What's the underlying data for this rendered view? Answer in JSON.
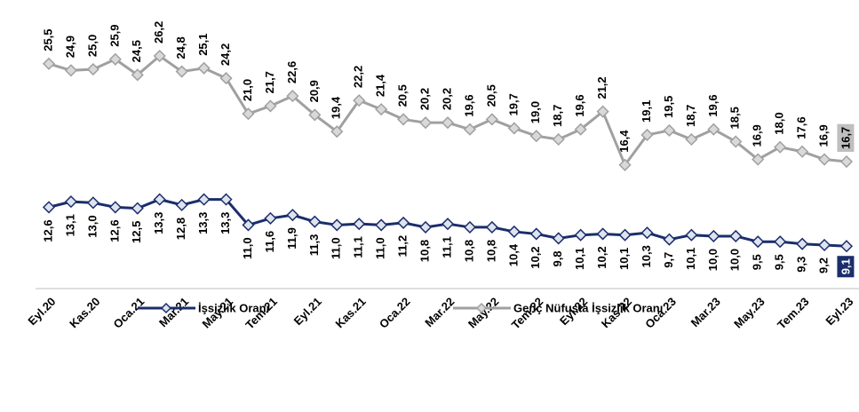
{
  "chart_data": {
    "type": "line",
    "categories": [
      "Eyl.20",
      null,
      "Kas.20",
      null,
      "Oca.21",
      null,
      "Mar.21",
      null,
      "May.21",
      null,
      "Tem.21",
      null,
      "Eyl.21",
      null,
      "Kas.21",
      null,
      "Oca.22",
      null,
      "Mar.22",
      null,
      "May.22",
      null,
      "Tem.22",
      null,
      "Eyl.22",
      null,
      "Kas.22",
      null,
      "Oca.23",
      null,
      "Mar.23",
      null,
      "May.23",
      null,
      "Tem.23",
      null,
      "Eyl.23"
    ],
    "series": [
      {
        "name": "İşsizlik Oranı",
        "color": "#1a2e6b",
        "values": [
          12.6,
          13.1,
          13.0,
          12.6,
          12.5,
          13.3,
          12.8,
          13.3,
          13.3,
          11.0,
          11.6,
          11.9,
          11.3,
          11.0,
          11.1,
          11.0,
          11.2,
          10.8,
          11.1,
          10.8,
          10.8,
          10.4,
          10.2,
          9.8,
          10.1,
          10.2,
          10.1,
          10.3,
          9.7,
          10.1,
          10.0,
          10.0,
          9.5,
          9.5,
          9.3,
          9.2,
          9.1
        ],
        "value_labels": [
          "12,6",
          "13,1",
          "13,0",
          "12,6",
          "12,5",
          "13,3",
          "12,8",
          "13,3",
          "13,3",
          "11,0",
          "11,6",
          "11,9",
          "11,3",
          "11,0",
          "11,1",
          "11,0",
          "11,2",
          "10,8",
          "11,1",
          "10,8",
          "10,8",
          "10,4",
          "10,2",
          "9,8",
          "10,1",
          "10,2",
          "10,1",
          "10,3",
          "9,7",
          "10,1",
          "10,0",
          "10,0",
          "9,5",
          "9,5",
          "9,3",
          "9,2",
          "9,1"
        ]
      },
      {
        "name": "Genç Nüfusta İşsizlik Oranı",
        "color": "#a0a0a0",
        "values": [
          25.5,
          24.9,
          25.0,
          25.9,
          24.5,
          26.2,
          24.8,
          25.1,
          24.2,
          21.0,
          21.7,
          22.6,
          20.9,
          19.4,
          22.2,
          21.4,
          20.5,
          20.2,
          20.2,
          19.6,
          20.5,
          19.7,
          19.0,
          18.7,
          19.6,
          21.2,
          16.4,
          19.1,
          19.5,
          18.7,
          19.6,
          18.5,
          16.9,
          18.0,
          17.6,
          16.9,
          16.7
        ],
        "value_labels": [
          "25,5",
          "24,9",
          "25,0",
          "25,9",
          "24,5",
          "26,2",
          "24,8",
          "25,1",
          "24,2",
          "21,0",
          "21,7",
          "22,6",
          "20,9",
          "19,4",
          "22,2",
          "21,4",
          "20,5",
          "20,2",
          "20,2",
          "19,6",
          "20,5",
          "19,7",
          "19,0",
          "18,7",
          "19,6",
          "21,2",
          "16,4",
          "19,1",
          "19,5",
          "18,7",
          "19,6",
          "18,5",
          "16,9",
          "18,0",
          "17,6",
          "16,9",
          "16,7"
        ]
      }
    ],
    "ylim": [
      8,
      27
    ]
  }
}
